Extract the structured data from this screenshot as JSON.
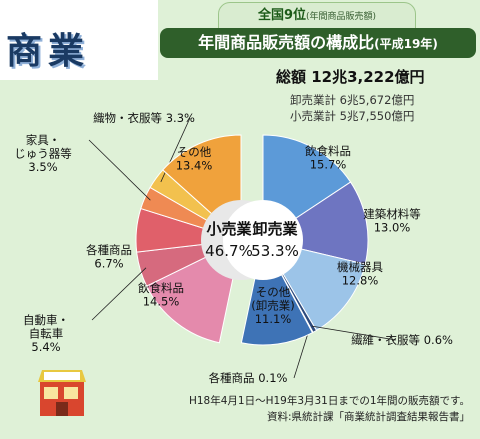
{
  "header": {
    "title": "商業",
    "rank_badge": "全国9位",
    "rank_badge_note": "(年間商品販売額)",
    "chart_title": "年間商品販売額の構成比",
    "chart_title_year": "(平成19年)"
  },
  "totals": {
    "total": "総額 12兆3,222億円",
    "wholesale": "卸売業計 6兆5,672億円",
    "retail": "小売業計 5兆7,550億円"
  },
  "footer": {
    "period": "H18年4月1日～H19年3月31日までの1年間の販売額です。",
    "source": "資料:県統計課「商業統計調査結果報告書」"
  },
  "colors": {
    "retail_center": "#e8e8e8",
    "wholesale_center": "#ffffff",
    "leader_line": "#222222"
  },
  "chart_data": {
    "type": "pie",
    "unit": "%",
    "groups": [
      {
        "name": "卸売業",
        "value": "53.3%",
        "percent": 53.3
      },
      {
        "name": "小売業",
        "value": "46.7%",
        "percent": 46.7
      }
    ],
    "slices": [
      {
        "group": "卸売業",
        "label": "飲食料品",
        "value": "15.7%",
        "percent": 15.7,
        "color": "#5c9ad8"
      },
      {
        "group": "卸売業",
        "label": "建築材料等",
        "value": "13.0%",
        "percent": 13.0,
        "color": "#6e75c1"
      },
      {
        "group": "卸売業",
        "label": "機械器具",
        "value": "12.8%",
        "percent": 12.8,
        "color": "#9cc4e8"
      },
      {
        "group": "卸売業",
        "label": "繊維・衣服等",
        "value": "0.6%",
        "percent": 0.6,
        "color": "#2d4a7d"
      },
      {
        "group": "卸売業",
        "label": "各種商品",
        "value": "0.1%",
        "percent": 0.1,
        "color": "#2d4a7d"
      },
      {
        "group": "卸売業",
        "label": "その他\n(卸売業)",
        "value": "11.1%",
        "percent": 11.1,
        "color": "#3e73b6"
      },
      {
        "group": "小売業",
        "label": "飲食料品",
        "value": "14.5%",
        "percent": 14.5,
        "color": "#e48aac"
      },
      {
        "group": "小売業",
        "label": "自動車・\n自転車",
        "value": "5.4%",
        "percent": 5.4,
        "color": "#d66a7e"
      },
      {
        "group": "小売業",
        "label": "各種商品",
        "value": "6.7%",
        "percent": 6.7,
        "color": "#e0606a"
      },
      {
        "group": "小売業",
        "label": "家具・\nじゅう器等",
        "value": "3.5%",
        "percent": 3.5,
        "color": "#ef8a53"
      },
      {
        "group": "小売業",
        "label": "織物・衣服等",
        "value": "3.3%",
        "percent": 3.3,
        "color": "#f2c14e"
      },
      {
        "group": "小売業",
        "label": "その他",
        "value": "13.4%",
        "percent": 13.4,
        "color": "#f0a23c"
      }
    ]
  }
}
